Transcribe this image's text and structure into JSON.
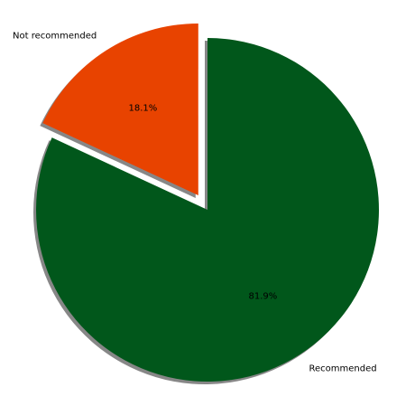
{
  "chart_data": {
    "type": "pie",
    "title": "",
    "slices": [
      {
        "label": "Recommended",
        "value": 81.9,
        "pct_label": "81.9%",
        "color": "#01571b",
        "exploded": false
      },
      {
        "label": "Not recommended",
        "value": 18.1,
        "pct_label": "18.1%",
        "color": "#e84300",
        "exploded": true
      }
    ],
    "start_angle_deg": 90,
    "direction": "clockwise",
    "shadow": true,
    "legend": "none"
  }
}
